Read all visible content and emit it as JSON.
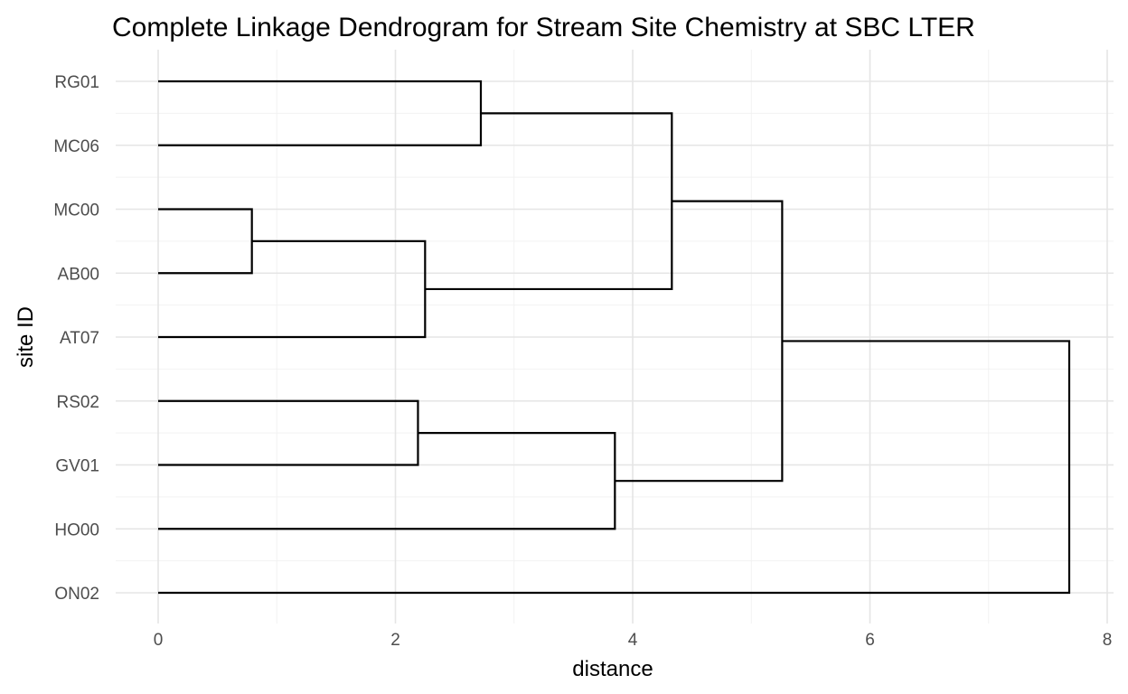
{
  "chart_data": {
    "type": "dendrogram",
    "title": "Complete Linkage Dendrogram for Stream Site Chemistry at SBC LTER",
    "xlabel": "distance",
    "ylabel": "site ID",
    "xlim": [
      0,
      8
    ],
    "x_ticks": [
      0,
      2,
      4,
      6,
      8
    ],
    "grid": true,
    "leaves": [
      "RG01",
      "MC06",
      "MC00",
      "AB00",
      "AT07",
      "RS02",
      "GV01",
      "HO00",
      "ON02"
    ],
    "merges": [
      {
        "left": "MC00",
        "right": "AB00",
        "height": 0.79
      },
      {
        "left": "RS02",
        "right": "GV01",
        "height": 2.19
      },
      {
        "left": "MC00+AB00",
        "right": "AT07",
        "height": 2.25
      },
      {
        "left": "RG01",
        "right": "MC06",
        "height": 2.72
      },
      {
        "left": "RS02+GV01",
        "right": "HO00",
        "height": 3.85
      },
      {
        "left": "RG01+MC06",
        "right": "MC00+AB00+AT07",
        "height": 4.33
      },
      {
        "left": "RG01+MC06+MC00+AB00+AT07",
        "right": "RS02+GV01+HO00",
        "height": 5.26
      },
      {
        "left": "RG01+MC06+MC00+AB00+AT07+RS02+GV01+HO00",
        "right": "ON02",
        "height": 7.68
      }
    ]
  }
}
